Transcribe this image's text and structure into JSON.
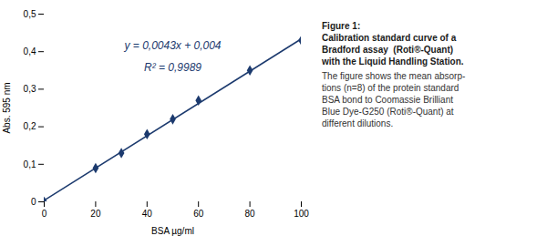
{
  "chart_data": {
    "type": "scatter",
    "xlabel": "BSA µg/ml",
    "ylabel": "Abs. 595 nm",
    "series": [
      {
        "type": "line",
        "color": "#1c3a6e",
        "line_style": "solid",
        "x": [
          0,
          100
        ],
        "values": [
          0.004,
          0.434
        ]
      },
      {
        "type": "scatter",
        "color": "#1c3a6e",
        "marker": "diamond",
        "x": [
          0,
          20,
          30,
          40,
          50,
          60,
          80,
          100
        ],
        "values": [
          0.0,
          0.09,
          0.13,
          0.18,
          0.22,
          0.27,
          0.35,
          0.43
        ]
      }
    ],
    "xlim": [
      0,
      100
    ],
    "ylim": [
      0,
      0.5
    ],
    "xticks": [
      0,
      20,
      40,
      60,
      80,
      100
    ],
    "yticks": [
      0,
      {
        "value": 0.1,
        "label": "0,1"
      },
      {
        "value": 0.2,
        "label": "0,2"
      },
      {
        "value": 0.3,
        "label": "0,3"
      },
      {
        "value": 0.4,
        "label": "0,4"
      },
      {
        "value": 0.5,
        "label": "0,5"
      }
    ],
    "grid": false,
    "annotations": [
      {
        "text": "y = 0,0043x + 0,004",
        "color": "#1c3a6e"
      },
      {
        "text": "R² = 0,9989",
        "color": "#1c3a6e"
      }
    ],
    "caption": {
      "bold": [
        "Figure 1:",
        "Calibration standard curve of a",
        "Bradford assay  (Roti®-Quant)",
        "with the Liquid Handling Station."
      ],
      "normal": [
        "The figure shows the mean absorp-",
        "tions (n=8) of the protein standard",
        "BSA bond to Coomassie Brilliant",
        "Blue Dye-G250 (Roti®-Quant) at",
        "different dilutions."
      ]
    }
  }
}
